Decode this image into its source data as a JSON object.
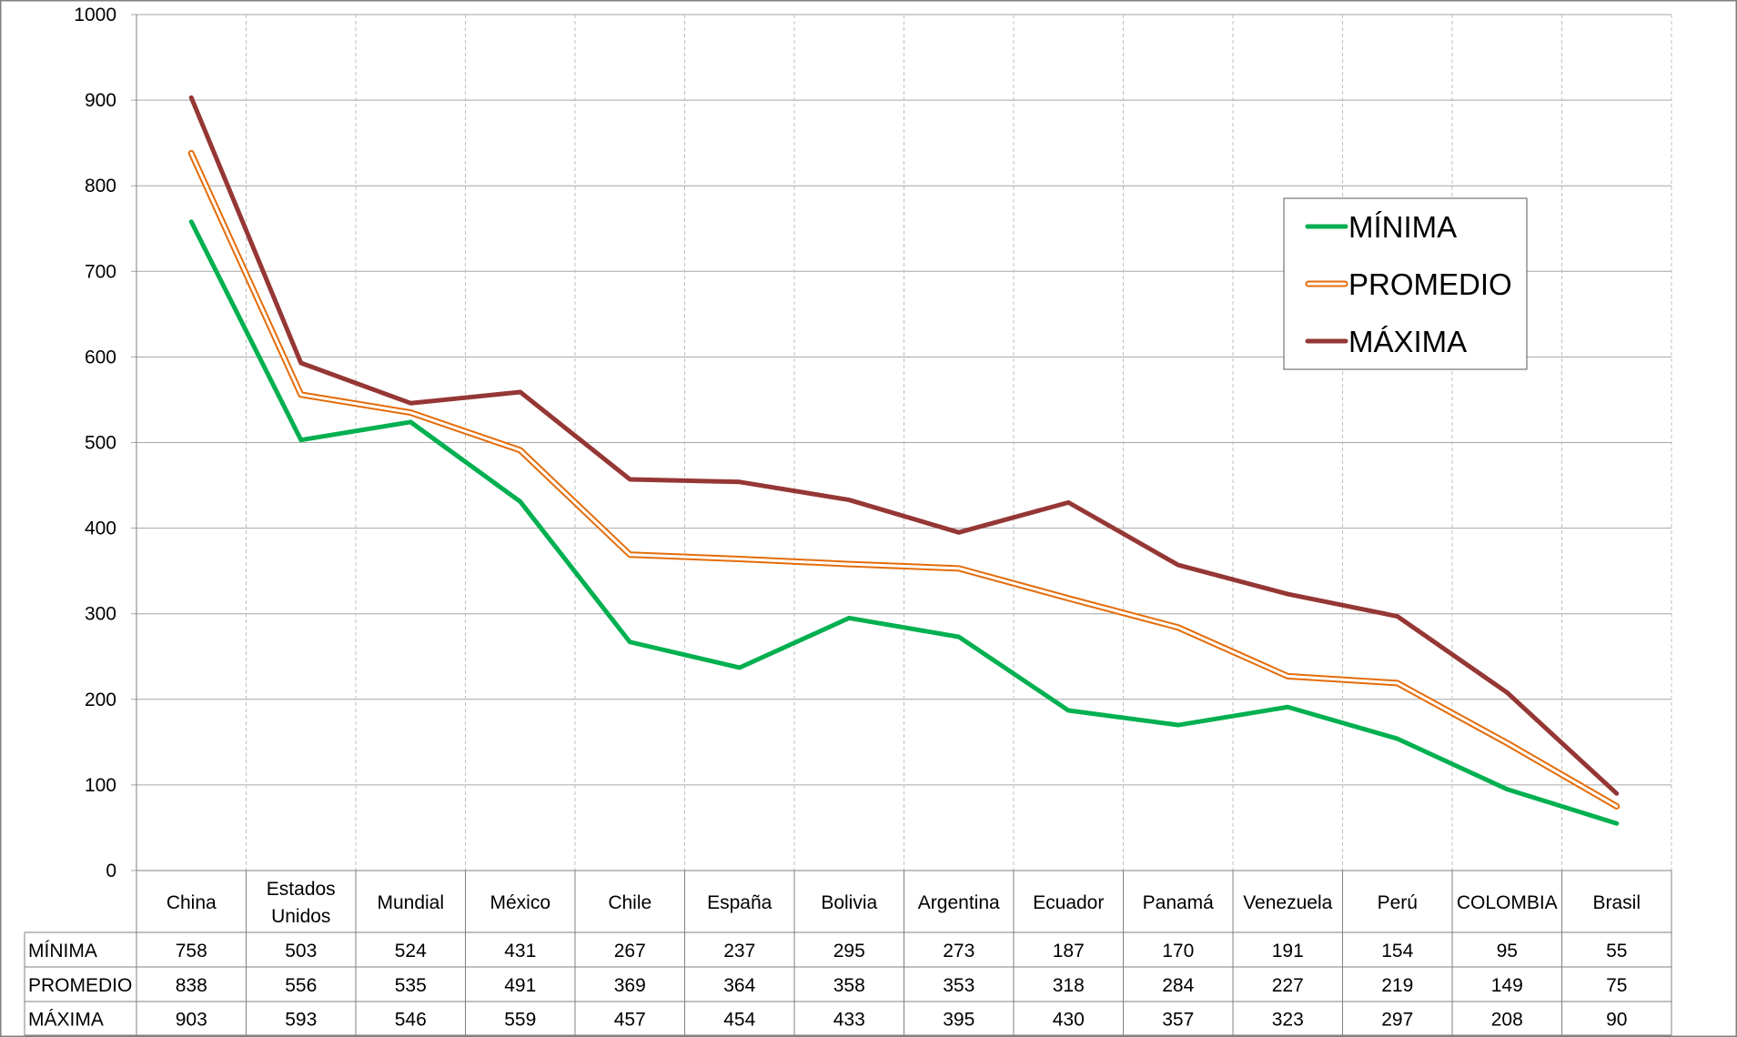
{
  "chart_data": {
    "type": "line",
    "title": "",
    "xlabel": "",
    "ylabel": "",
    "ylim": [
      0,
      1000
    ],
    "yticks": [
      0,
      100,
      200,
      300,
      400,
      500,
      600,
      700,
      800,
      900,
      1000
    ],
    "grid": true,
    "legend_position": "top-right",
    "categories": [
      "China",
      "Estados Unidos",
      "Mundial",
      "México",
      "Chile",
      "España",
      "Bolivia",
      "Argentina",
      "Ecuador",
      "Panamá",
      "Venezuela",
      "Perú",
      "COLOMBIA",
      "Brasil"
    ],
    "series": [
      {
        "name": "MÍNIMA",
        "color": "#00B050",
        "style": "solid",
        "values": [
          758,
          503,
          524,
          431,
          267,
          237,
          295,
          273,
          187,
          170,
          191,
          154,
          95,
          55
        ]
      },
      {
        "name": "PROMEDIO",
        "color": "#E46C0A",
        "style": "double",
        "values": [
          838,
          556,
          535,
          491,
          369,
          364,
          358,
          353,
          318,
          284,
          227,
          219,
          149,
          75
        ]
      },
      {
        "name": "MÁXIMA",
        "color": "#953735",
        "style": "solid",
        "values": [
          903,
          593,
          546,
          559,
          457,
          454,
          433,
          395,
          430,
          357,
          323,
          297,
          208,
          90
        ]
      }
    ],
    "data_table": true
  }
}
